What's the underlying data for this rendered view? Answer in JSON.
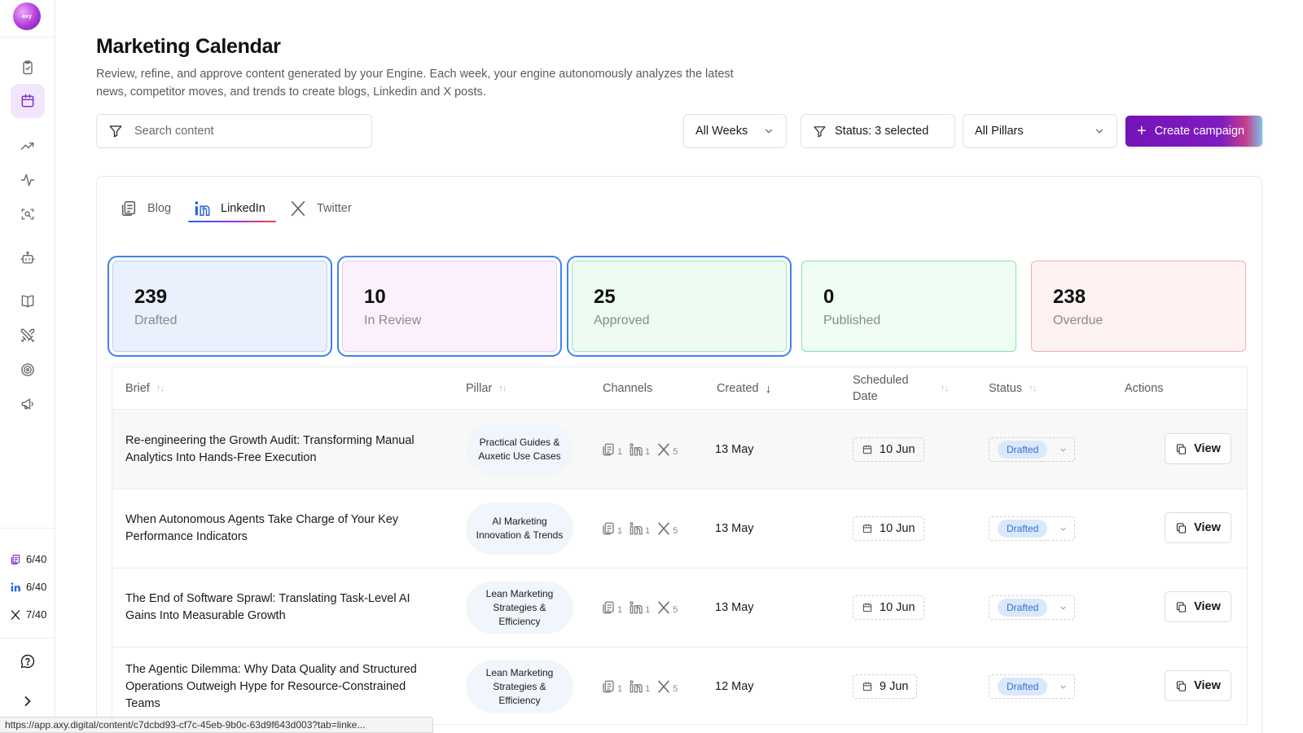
{
  "sidebar": {
    "logo_text": "axy",
    "nav": [
      {
        "icon": "clipboard-check-icon"
      },
      {
        "icon": "calendar-icon",
        "active": true
      },
      {
        "icon": "trending-up-icon"
      },
      {
        "icon": "activity-icon"
      },
      {
        "icon": "scan-search-icon"
      },
      {
        "icon": "bot-icon"
      },
      {
        "icon": "book-open-icon"
      },
      {
        "icon": "swords-icon"
      },
      {
        "icon": "target-icon"
      },
      {
        "icon": "megaphone-icon"
      }
    ],
    "quotas": [
      {
        "icon": "blog-icon",
        "value": "6/40"
      },
      {
        "icon": "linkedin-icon",
        "value": "6/40"
      },
      {
        "icon": "x-icon",
        "value": "7/40"
      }
    ],
    "help_icon": "help-circle-icon",
    "expand_icon": "chevron-right-icon"
  },
  "header": {
    "title": "Marketing Calendar",
    "description": "Review, refine, and approve content generated by your Engine. Each week, your engine autonomously analyzes the latest news, competitor moves, and trends to create blogs, Linkedin and X posts."
  },
  "toolbar": {
    "search_placeholder": "Search content",
    "weeks_filter": "All Weeks",
    "status_filter": "Status: 3 selected",
    "pillars_filter": "All Pillars",
    "create_button": "Create campaign"
  },
  "tabs": [
    {
      "label": "Blog",
      "icon": "blog-icon",
      "active": false
    },
    {
      "label": "LinkedIn",
      "icon": "linkedin-icon",
      "active": true
    },
    {
      "label": "Twitter",
      "icon": "x-icon",
      "active": false
    }
  ],
  "stats": [
    {
      "value": "239",
      "label": "Drafted",
      "selected": true
    },
    {
      "value": "10",
      "label": "In Review",
      "selected": true
    },
    {
      "value": "25",
      "label": "Approved",
      "selected": true
    },
    {
      "value": "0",
      "label": "Published",
      "selected": false
    },
    {
      "value": "238",
      "label": "Overdue",
      "selected": false
    }
  ],
  "table": {
    "columns": {
      "brief": "Brief",
      "pillar": "Pillar",
      "channels": "Channels",
      "created": "Created",
      "scheduled": "Scheduled Date",
      "status": "Status",
      "actions": "Actions"
    },
    "rows": [
      {
        "brief": "Re-engineering the Growth Audit: Transforming Manual Analytics Into Hands-Free Execution",
        "pillar": "Practical Guides & Auxetic Use Cases",
        "channels": {
          "blog": "1",
          "linkedin": "1",
          "x": "5"
        },
        "created": "13 May",
        "scheduled": "10 Jun",
        "status": "Drafted",
        "action": "View"
      },
      {
        "brief": "When Autonomous Agents Take Charge of Your Key Performance Indicators",
        "pillar": "AI Marketing Innovation & Trends",
        "channels": {
          "blog": "1",
          "linkedin": "1",
          "x": "5"
        },
        "created": "13 May",
        "scheduled": "10 Jun",
        "status": "Drafted",
        "action": "View"
      },
      {
        "brief": "The End of Software Sprawl: Translating Task-Level AI Gains Into Measurable Growth",
        "pillar": "Lean Marketing Strategies & Efficiency",
        "channels": {
          "blog": "1",
          "linkedin": "1",
          "x": "5"
        },
        "created": "13 May",
        "scheduled": "10 Jun",
        "status": "Drafted",
        "action": "View"
      },
      {
        "brief": "The Agentic Dilemma: Why Data Quality and Structured Operations Outweigh Hype for Resource-Constrained Teams",
        "pillar": "Lean Marketing Strategies & Efficiency",
        "channels": {
          "blog": "1",
          "linkedin": "1",
          "x": "5"
        },
        "created": "12 May",
        "scheduled": "9 Jun",
        "status": "Drafted",
        "action": "View"
      }
    ]
  },
  "status_url": "https://app.axy.digital/content/c7dcbd93-cf7c-45eb-9b0c-63d9f643d003?tab=linke...",
  "colors": {
    "accent": "#7a2bbd",
    "badge_drafted": "#2f6fd1",
    "selected_outline": "#3b82f6"
  }
}
